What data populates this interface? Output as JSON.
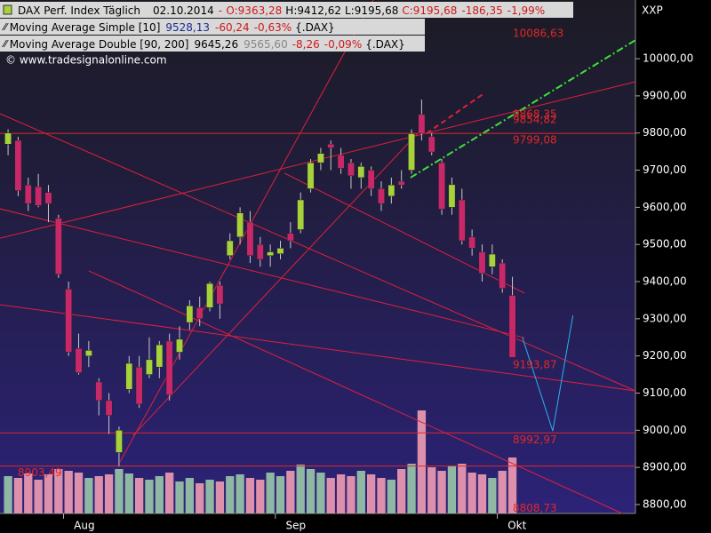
{
  "chart_data": {
    "type": "candlestick",
    "header": {
      "instrument": "DAX Perf. Index Täglich",
      "date": "02.10.2014",
      "separator": "-",
      "open": "O:9363,28",
      "high": "H:9412,62",
      "low": "L:9195,68",
      "close": "C:9195,68",
      "change": "-186,35",
      "change_pct": "-1,99%"
    },
    "indicators": [
      {
        "name": "Moving Average Simple [10]",
        "values": [
          "9528,13"
        ],
        "change": "-60,24",
        "change_pct": "-0,63%",
        "source": "{.DAX}"
      },
      {
        "name": "Moving Average Double [90, 200]",
        "values": [
          "9645,26",
          "9565,60"
        ],
        "change": "-8,26",
        "change_pct": "-0,09%",
        "source": "{.DAX}"
      }
    ],
    "copyright": "© www.tradesignalonline.com",
    "axis_label": "XXP",
    "categories": [
      null,
      null,
      null,
      null,
      null,
      null,
      "Aug",
      null,
      null,
      null,
      null,
      null,
      null,
      null,
      null,
      null,
      null,
      null,
      null,
      null,
      null,
      null,
      null,
      null,
      null,
      null,
      null,
      "Sep",
      null,
      null,
      null,
      null,
      null,
      null,
      null,
      null,
      null,
      null,
      null,
      null,
      null,
      null,
      null,
      null,
      null,
      null,
      null,
      null,
      null,
      "Okt",
      null
    ],
    "ohlc": [
      [
        9770,
        9810,
        9740,
        9800
      ],
      [
        9780,
        9790,
        9630,
        9645
      ],
      [
        9660,
        9680,
        9590,
        9610
      ],
      [
        9655,
        9690,
        9600,
        9605
      ],
      [
        9640,
        9660,
        9560,
        9610
      ],
      [
        9570,
        9580,
        9410,
        9420
      ],
      [
        9380,
        9400,
        9200,
        9210
      ],
      [
        9220,
        9260,
        9150,
        9155
      ],
      [
        9200,
        9240,
        9170,
        9215
      ],
      [
        9130,
        9140,
        9040,
        9080
      ],
      [
        9080,
        9100,
        8990,
        9040
      ],
      [
        8940,
        9010,
        8903,
        9000
      ],
      [
        9110,
        9200,
        9100,
        9180
      ],
      [
        9170,
        9200,
        9060,
        9070
      ],
      [
        9150,
        9250,
        9140,
        9190
      ],
      [
        9170,
        9240,
        9140,
        9230
      ],
      [
        9240,
        9260,
        9080,
        9095
      ],
      [
        9210,
        9280,
        9190,
        9245
      ],
      [
        9290,
        9350,
        9270,
        9335
      ],
      [
        9330,
        9360,
        9280,
        9300
      ],
      [
        9330,
        9400,
        9320,
        9395
      ],
      [
        9390,
        9400,
        9300,
        9340
      ],
      [
        9470,
        9530,
        9460,
        9510
      ],
      [
        9520,
        9600,
        9500,
        9585
      ],
      [
        9560,
        9590,
        9450,
        9470
      ],
      [
        9500,
        9520,
        9440,
        9460
      ],
      [
        9470,
        9500,
        9440,
        9480
      ],
      [
        9475,
        9510,
        9460,
        9490
      ],
      [
        9530,
        9560,
        9490,
        9510
      ],
      [
        9540,
        9640,
        9530,
        9620
      ],
      [
        9650,
        9730,
        9640,
        9720
      ],
      [
        9720,
        9760,
        9700,
        9745
      ],
      [
        9770,
        9780,
        9700,
        9760
      ],
      [
        9740,
        9760,
        9690,
        9705
      ],
      [
        9720,
        9730,
        9650,
        9685
      ],
      [
        9680,
        9720,
        9650,
        9710
      ],
      [
        9700,
        9710,
        9630,
        9650
      ],
      [
        9650,
        9670,
        9590,
        9610
      ],
      [
        9630,
        9680,
        9610,
        9660
      ],
      [
        9670,
        9700,
        9650,
        9660
      ],
      [
        9700,
        9810,
        9690,
        9798
      ],
      [
        9850,
        9890,
        9780,
        9799
      ],
      [
        9790,
        9800,
        9740,
        9749
      ],
      [
        9720,
        9730,
        9580,
        9595
      ],
      [
        9600,
        9680,
        9580,
        9661
      ],
      [
        9620,
        9650,
        9500,
        9510
      ],
      [
        9520,
        9540,
        9470,
        9490
      ],
      [
        9480,
        9500,
        9400,
        9422
      ],
      [
        9440,
        9500,
        9420,
        9474
      ],
      [
        9450,
        9460,
        9370,
        9382
      ],
      [
        9363,
        9413,
        9196,
        9196
      ]
    ],
    "volume": [
      42,
      40,
      45,
      38,
      44,
      50,
      48,
      46,
      40,
      42,
      44,
      50,
      45,
      40,
      38,
      42,
      46,
      36,
      40,
      34,
      38,
      36,
      42,
      44,
      40,
      38,
      46,
      42,
      48,
      55,
      50,
      46,
      40,
      44,
      42,
      48,
      44,
      40,
      38,
      50,
      56,
      116,
      52,
      48,
      54,
      56,
      46,
      44,
      40,
      48,
      63
    ],
    "volume_lim": [
      0,
      150
    ],
    "up_color": "#a8d23c",
    "down_color": "#c8286a",
    "volume_up_color": "#8fb8a4",
    "volume_down_color": "#dc90ac",
    "xlim": [
      -0.8,
      62.2
    ],
    "ylim": [
      8776,
      10158
    ],
    "yticks": [
      {
        "value": 10000,
        "label": "10000,00"
      },
      {
        "value": 9900,
        "label": "9900,00"
      },
      {
        "value": 9800,
        "label": "9800,00"
      },
      {
        "value": 9700,
        "label": "9700,00"
      },
      {
        "value": 9600,
        "label": "9600,00"
      },
      {
        "value": 9500,
        "label": "9500,00"
      },
      {
        "value": 9400,
        "label": "9400,00"
      },
      {
        "value": 9300,
        "label": "9300,00"
      },
      {
        "value": 9200,
        "label": "9200,00"
      },
      {
        "value": 9100,
        "label": "9100,00"
      },
      {
        "value": 9000,
        "label": "9000,00"
      },
      {
        "value": 8900,
        "label": "8900,00"
      },
      {
        "value": 8800,
        "label": "8800,00"
      }
    ],
    "levels": [
      {
        "value": 10086.63,
        "label": "10086,63",
        "line": false
      },
      {
        "value": 9868.35,
        "label": "9868,35",
        "line": false
      },
      {
        "value": 9854.82,
        "label": "9854,82",
        "line": false
      },
      {
        "value": 9799.08,
        "label": "9799,08",
        "line": true
      },
      {
        "value": 9193.87,
        "label": "9193,87",
        "line": false
      },
      {
        "value": 8992.97,
        "label": "8992,97",
        "line": true
      },
      {
        "value": 8903.49,
        "label": "8903,49",
        "line": true,
        "label_side": "left"
      },
      {
        "value": 8808.73,
        "label": "8808,73",
        "line": false
      }
    ],
    "level_color": "#e02828",
    "overlays": [
      {
        "color": "#e0203a",
        "style": "solid",
        "x": [
          -0.8,
          62.2
        ],
        "y": [
          9852,
          9106
        ]
      },
      {
        "color": "#e0203a",
        "style": "solid",
        "x": [
          -0.8,
          62.2
        ],
        "y": [
          9338,
          9106
        ]
      },
      {
        "color": "#e0203a",
        "style": "solid",
        "x": [
          -0.8,
          51.2
        ],
        "y": [
          9596,
          9249
        ]
      },
      {
        "color": "#e0203a",
        "style": "solid",
        "x": [
          -0.8,
          62.2
        ],
        "y": [
          9517,
          9938
        ]
      },
      {
        "color": "#e0203a",
        "style": "solid",
        "x": [
          11.1,
          36.2
        ],
        "y": [
          8915,
          10158
        ]
      },
      {
        "color": "#e0203a",
        "style": "solid",
        "x": [
          12.4,
          40.6
        ],
        "y": [
          8986,
          9799
        ]
      },
      {
        "color": "#e0203a",
        "style": "solid",
        "x": [
          8.0,
          60.9
        ],
        "y": [
          9429,
          8776
        ]
      },
      {
        "color": "#e0203a",
        "style": "solid",
        "x": [
          27.4,
          51.2
        ],
        "y": [
          9692,
          9369
        ]
      },
      {
        "color": "#e0203a",
        "style": "dash",
        "x": [
          41.5,
          47.2
        ],
        "y": [
          9799,
          9907
        ]
      },
      {
        "color": "#3ee03a",
        "style": "dash-dot",
        "x": [
          39.9,
          62.2
        ],
        "y": [
          9680,
          10050
        ]
      },
      {
        "color": "#28b4f0",
        "style": "solid",
        "x": [
          51.0,
          54.0,
          56.0
        ],
        "y": [
          9249,
          8998,
          9309
        ]
      }
    ]
  }
}
